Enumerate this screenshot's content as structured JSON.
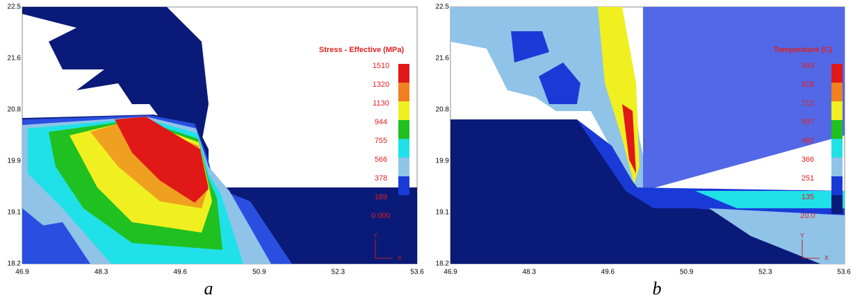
{
  "panels": [
    {
      "caption": "a",
      "legend_title": "Stress - Effective (MPa)",
      "legend_labels": [
        "1510",
        "1320",
        "1130",
        "944",
        "755",
        "566",
        "378",
        "189",
        "0.000"
      ],
      "x_ticks": [
        "46.9",
        "48.3",
        "49.6",
        "50.9",
        "52.3",
        "53.6"
      ],
      "y_ticks": [
        "22.5",
        "21.6",
        "20.8",
        "19.9",
        "19.1",
        "18.2"
      ],
      "axis_y": "Y",
      "axis_x": "X"
    },
    {
      "caption": "b",
      "legend_title": "Temperature (C)",
      "legend_labels": [
        "943",
        "828",
        "712",
        "597",
        "482",
        "366",
        "251",
        "135",
        "20.0"
      ],
      "x_ticks": [
        "46.9",
        "48.3",
        "49.6",
        "50.9",
        "52.3",
        "53.6"
      ],
      "y_ticks": [
        "22.5",
        "21.6",
        "20.8",
        "19.9",
        "19.1",
        "18.2"
      ],
      "axis_y": "Y",
      "axis_x": "X"
    }
  ]
}
